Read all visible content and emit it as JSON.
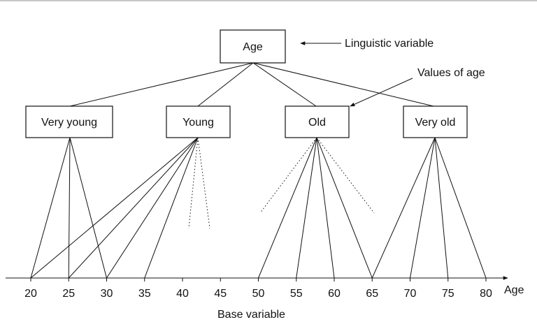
{
  "root_node": {
    "label": "Age"
  },
  "annotations": {
    "linguistic_variable": "Linguistic variable",
    "values_of_age": "Values of age",
    "base_variable": "Base variable"
  },
  "value_nodes": [
    {
      "label": "Very young"
    },
    {
      "label": "Young"
    },
    {
      "label": "Old"
    },
    {
      "label": "Very old"
    }
  ],
  "axis": {
    "label": "Age",
    "ticks": [
      "20",
      "25",
      "30",
      "35",
      "40",
      "45",
      "50",
      "55",
      "60",
      "65",
      "70",
      "75",
      "80"
    ]
  },
  "connections": [
    {
      "node": "Very young",
      "solid_to": [
        "20",
        "25",
        "30"
      ],
      "dotted_fan": false
    },
    {
      "node": "Young",
      "solid_to": [
        "20",
        "25",
        "30",
        "35"
      ],
      "dotted_fan": true
    },
    {
      "node": "Old",
      "solid_to": [
        "50",
        "55",
        "60",
        "65"
      ],
      "dotted_fan": true
    },
    {
      "node": "Very old",
      "solid_to": [
        "65",
        "70",
        "75",
        "80"
      ],
      "dotted_fan": false
    }
  ]
}
